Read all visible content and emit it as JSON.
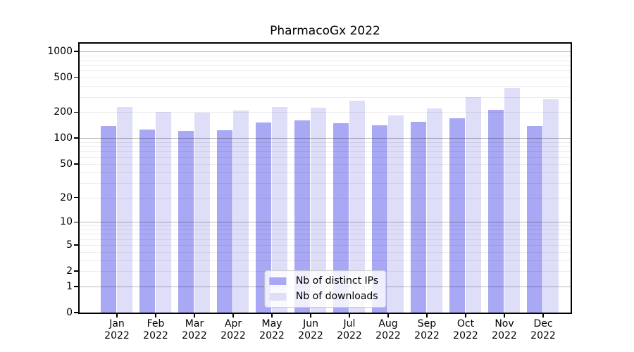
{
  "chart_data": {
    "type": "bar",
    "title": "PharmacoGx 2022",
    "categories": [
      "Jan 2022",
      "Feb 2022",
      "Mar 2022",
      "Apr 2022",
      "May 2022",
      "Jun 2022",
      "Jul 2022",
      "Aug 2022",
      "Sep 2022",
      "Oct 2022",
      "Nov 2022",
      "Dec 2022"
    ],
    "series": [
      {
        "name": "Nb of distinct IPs",
        "color": "#a8a8f5",
        "values": [
          137,
          127,
          122,
          124,
          152,
          160,
          150,
          142,
          155,
          169,
          214,
          138
        ]
      },
      {
        "name": "Nb of downloads",
        "color": "#dedef8",
        "values": [
          231,
          203,
          196,
          210,
          229,
          225,
          272,
          184,
          220,
          298,
          380,
          284
        ]
      }
    ],
    "xlabel": "",
    "ylabel": "",
    "y_ticks": [
      0,
      1,
      2,
      5,
      10,
      20,
      50,
      100,
      200,
      500,
      1000
    ],
    "major_gridlines": [
      1,
      10,
      100,
      1000
    ],
    "y_scale": "log1p",
    "axis_max": 1230,
    "grid": true,
    "legend_position": "lower center"
  }
}
